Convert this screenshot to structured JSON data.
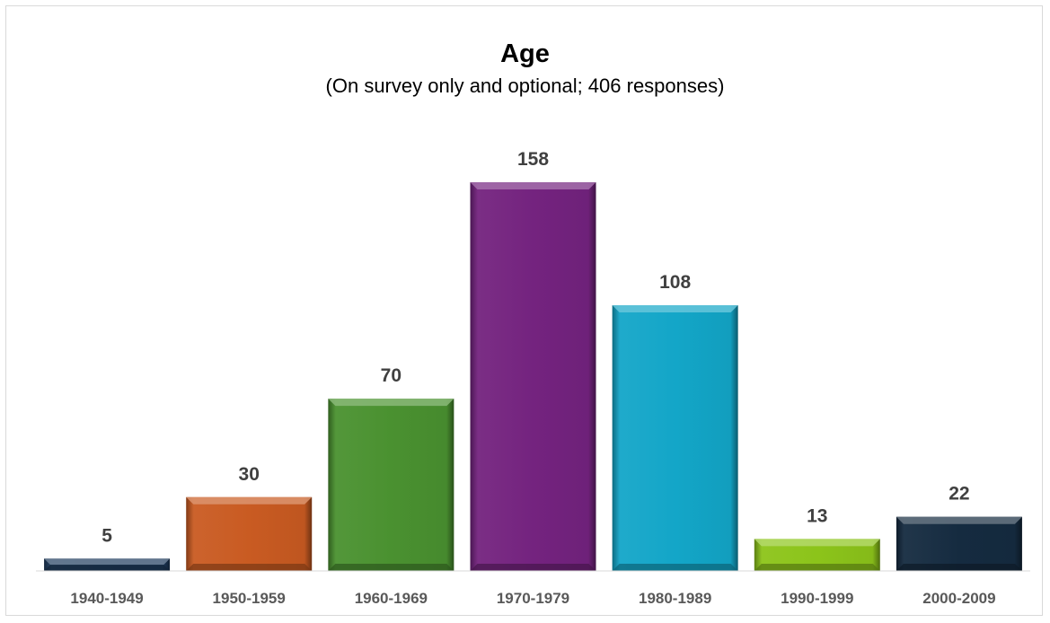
{
  "chart_data": {
    "type": "bar",
    "title": "Age",
    "subtitle": "(On survey only and optional; 406 responses)",
    "xlabel": "",
    "ylabel": "",
    "categories": [
      "1940-1949",
      "1950-1959",
      "1960-1969",
      "1970-1979",
      "1980-1989",
      "1990-1999",
      "2000-2009"
    ],
    "values": [
      5,
      30,
      70,
      158,
      108,
      13,
      22
    ],
    "colors": [
      "#1f3c5e",
      "#c95b22",
      "#4a9130",
      "#74237f",
      "#13a6c8",
      "#8cc41a",
      "#152b40"
    ],
    "ylim": [
      0,
      165
    ],
    "grid": false,
    "legend": "none",
    "data_labels": true
  }
}
